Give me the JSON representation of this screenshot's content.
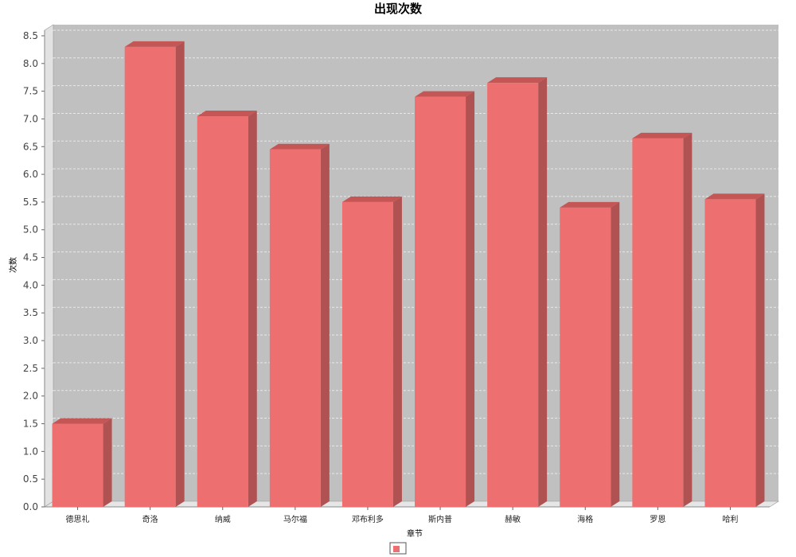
{
  "chart_data": {
    "type": "bar",
    "title": "出现次数",
    "xlabel": "章节",
    "ylabel": "次数",
    "categories": [
      "德思礼",
      "奇洛",
      "纳威",
      "马尔福",
      "邓布利多",
      "斯内普",
      "赫敏",
      "海格",
      "罗恩",
      "哈利"
    ],
    "series": [
      {
        "name": "",
        "values": [
          1.5,
          8.3,
          7.05,
          6.45,
          5.5,
          7.4,
          7.65,
          5.4,
          6.65,
          5.55
        ]
      }
    ],
    "ylim": [
      0,
      8.6
    ],
    "yticks": [
      "0.0",
      "0.5",
      "1.0",
      "1.5",
      "2.0",
      "2.5",
      "3.0",
      "3.5",
      "4.0",
      "4.5",
      "5.0",
      "5.5",
      "6.0",
      "6.5",
      "7.0",
      "7.5",
      "8.0",
      "8.5"
    ],
    "grid": true,
    "legend": "bottom-center",
    "style": "3d",
    "colors": {
      "bar_front": "#ee6f6f",
      "bar_top": "#c45656",
      "bar_side": "#b05252",
      "plot_bg": "#c0c0c0",
      "wall_side": "#e2e2e2",
      "floor": "#e6e6e6",
      "grid": "#e8e8e8"
    }
  }
}
